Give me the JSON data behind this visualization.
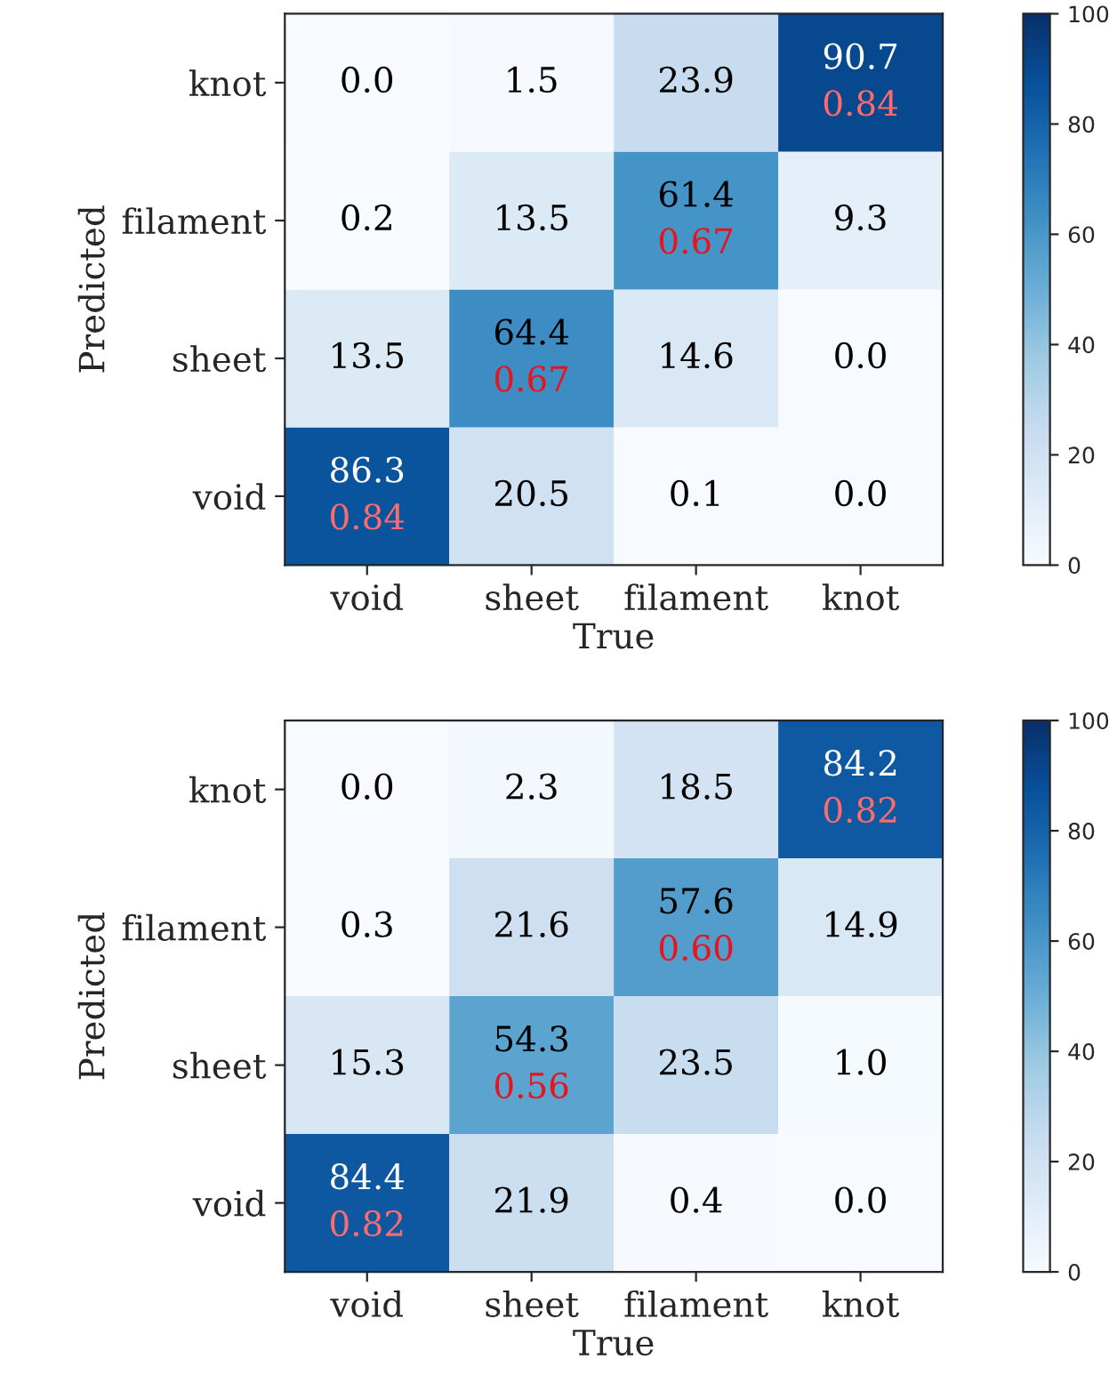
{
  "chart_data": [
    {
      "type": "heatmap",
      "xlabel": "True",
      "ylabel": "Predicted",
      "categories": [
        "void",
        "sheet",
        "filament",
        "knot"
      ],
      "y_categories": [
        "knot",
        "filament",
        "sheet",
        "void"
      ],
      "cells": [
        [
          0.0,
          1.5,
          23.9,
          90.7
        ],
        [
          0.2,
          13.5,
          61.4,
          9.3
        ],
        [
          13.5,
          64.4,
          14.6,
          0.0
        ],
        [
          86.3,
          20.5,
          0.1,
          0.0
        ]
      ],
      "cell_labels": [
        [
          "0.0",
          "1.5",
          "23.9",
          "90.7\n0.84"
        ],
        [
          "0.2",
          "13.5",
          "61.4\n0.67",
          "9.3"
        ],
        [
          "13.5",
          "64.4\n0.67",
          "14.6",
          "0.0"
        ],
        [
          "86.3\n0.84",
          "20.5",
          "0.1",
          "0.0"
        ]
      ],
      "clim": [
        0,
        100
      ],
      "cticks": [
        0,
        20,
        40,
        60,
        80,
        100
      ]
    },
    {
      "type": "heatmap",
      "xlabel": "True",
      "ylabel": "Predicted",
      "categories": [
        "void",
        "sheet",
        "filament",
        "knot"
      ],
      "y_categories": [
        "knot",
        "filament",
        "sheet",
        "void"
      ],
      "cells": [
        [
          0.0,
          2.3,
          18.5,
          84.2
        ],
        [
          0.3,
          21.6,
          57.6,
          14.9
        ],
        [
          15.3,
          54.3,
          23.5,
          1.0
        ],
        [
          84.4,
          21.9,
          0.4,
          0.0
        ]
      ],
      "cell_labels": [
        [
          "0.0",
          "2.3",
          "18.5",
          "84.2\n0.82"
        ],
        [
          "0.3",
          "21.6",
          "57.6\n0.60",
          "14.9"
        ],
        [
          "15.3",
          "54.3\n0.56",
          "23.5",
          "1.0"
        ],
        [
          "84.4\n0.82",
          "21.9",
          "0.4",
          "0.0"
        ]
      ],
      "clim": [
        0,
        100
      ],
      "cticks": [
        0,
        20,
        40,
        60,
        80,
        100
      ]
    }
  ]
}
